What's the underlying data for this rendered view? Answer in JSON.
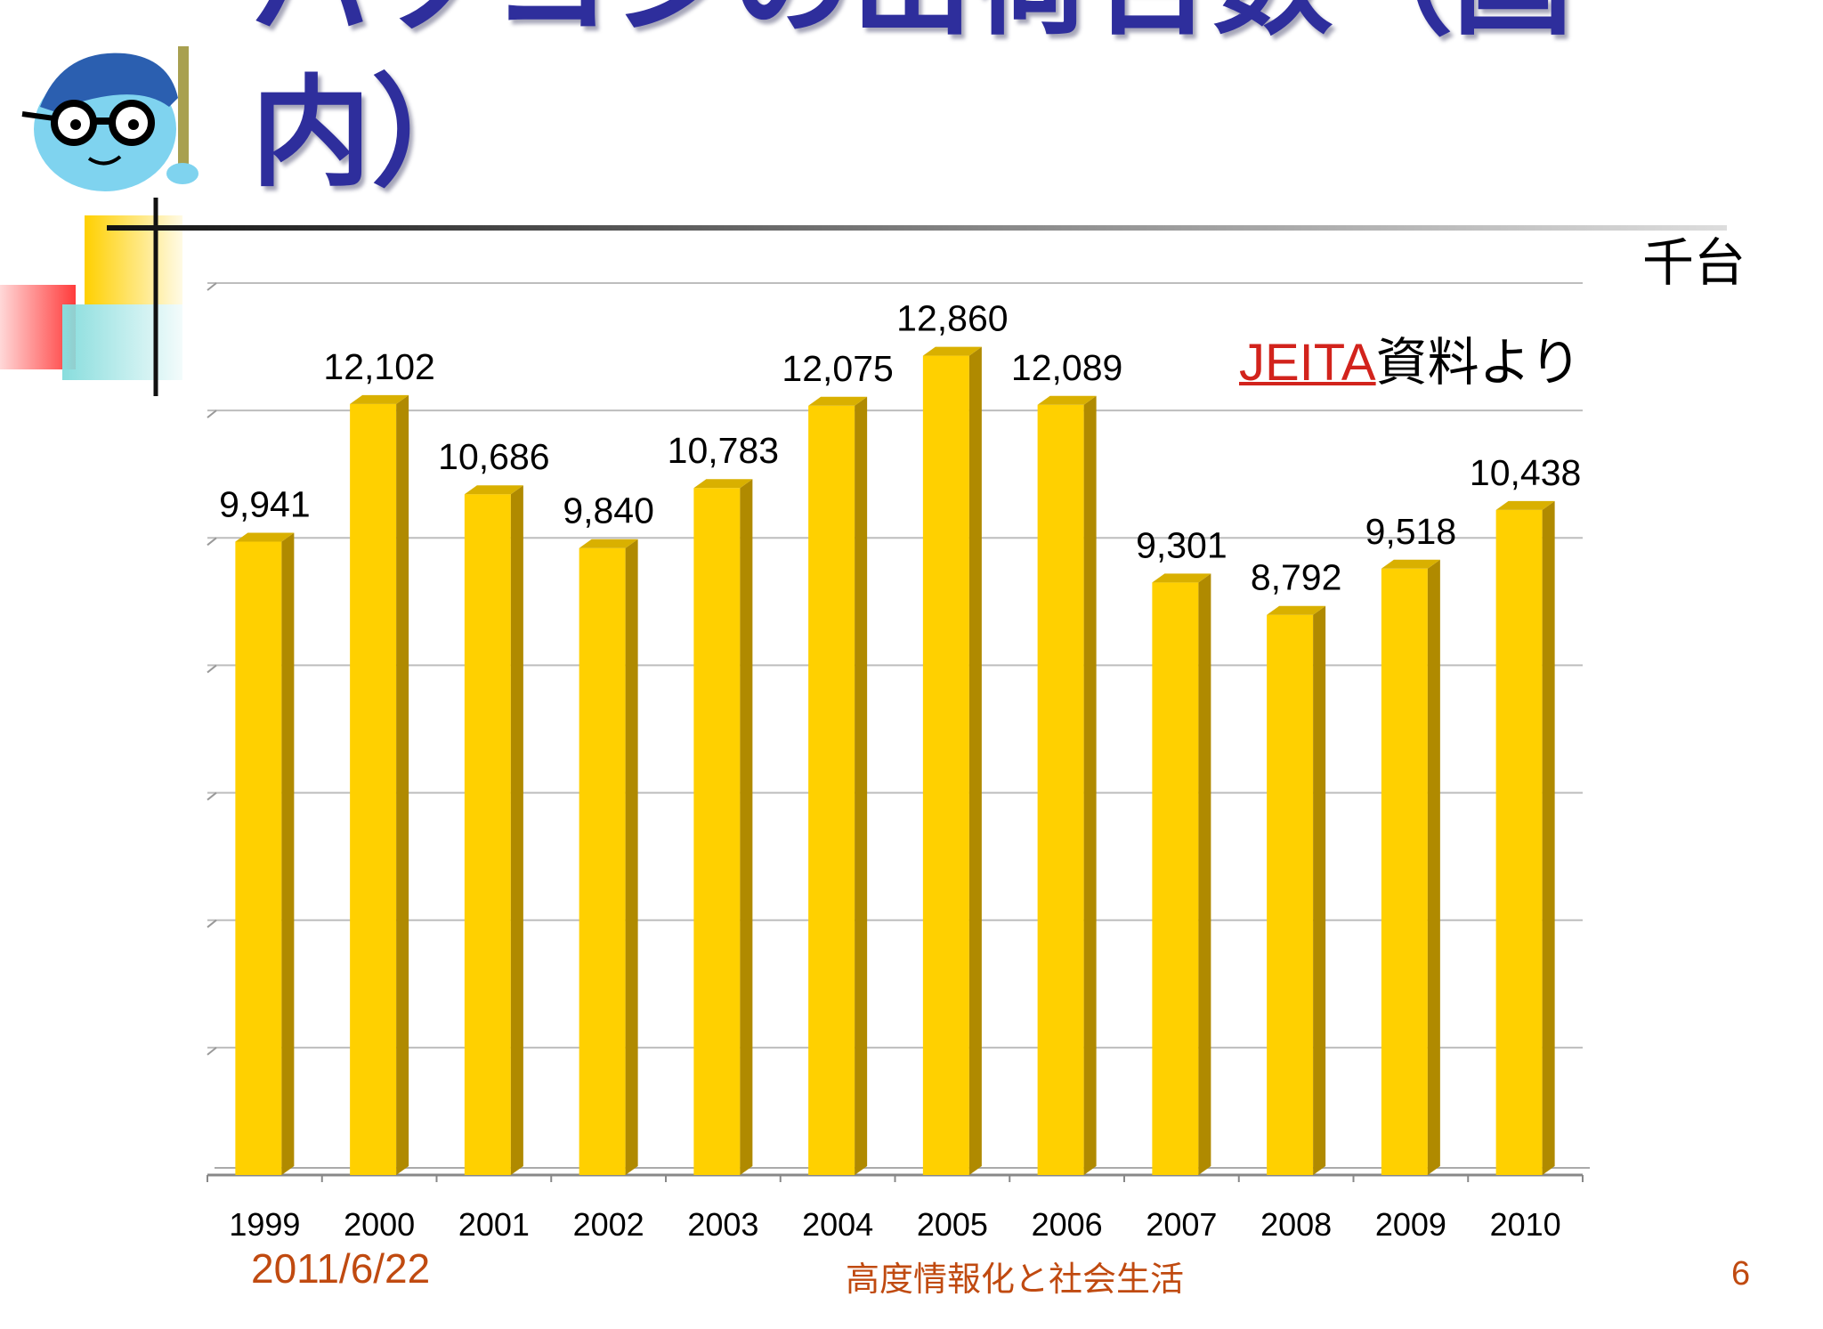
{
  "slide": {
    "title_line_1": "パソコンの出荷台数（国",
    "title_line_2": "内）",
    "unit": "千台",
    "source_org": "JEITA",
    "source_suffix": "資料より",
    "footer_date": "2011/6/22",
    "footer_course": "高度情報化と社会生活",
    "page_number": "6"
  },
  "colors": {
    "title": "#2e2e9c",
    "bar_front": "#ffd000",
    "bar_side": "#b08a00",
    "bar_top": "#d9b000",
    "source_org": "#d2231c",
    "footer": "#c04a10"
  },
  "chart_data": {
    "type": "bar",
    "categories": [
      "1999",
      "2000",
      "2001",
      "2002",
      "2003",
      "2004",
      "2005",
      "2006",
      "2007",
      "2008",
      "2009",
      "2010"
    ],
    "values": [
      9941,
      12102,
      10686,
      9840,
      10783,
      12075,
      12860,
      12089,
      9301,
      8792,
      9518,
      10438
    ],
    "value_labels": [
      "9,941",
      "12,102",
      "10,686",
      "9,840",
      "10,783",
      "12,075",
      "12,860",
      "12,089",
      "9,301",
      "8,792",
      "9,518",
      "10,438"
    ],
    "ylabel": "千台",
    "ylim": [
      0,
      14000
    ],
    "grid": true
  }
}
